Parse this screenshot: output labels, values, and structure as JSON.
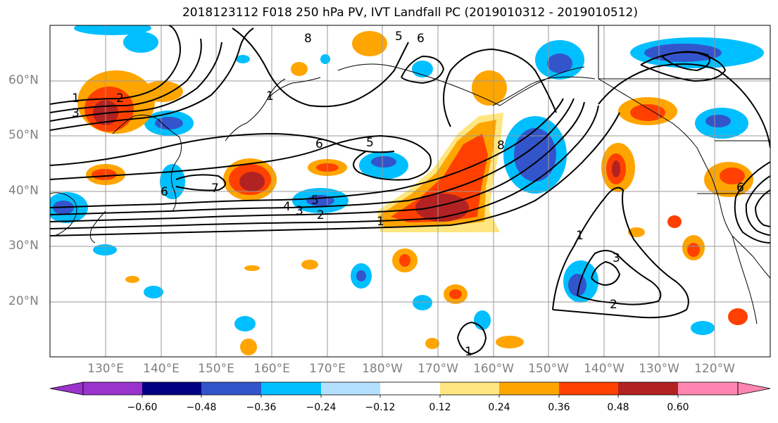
{
  "title": "2018123112 F018 250 hPa PV, IVT Landfall PC (2019010312 - 2019010512)",
  "lat_labels": [
    "60°N",
    "50°N",
    "40°N",
    "30°N",
    "20°N"
  ],
  "lon_labels": [
    "130°E",
    "140°E",
    "150°E",
    "160°E",
    "170°E",
    "180°W",
    "170°W",
    "160°W",
    "150°W",
    "140°W",
    "130°W",
    "120°W"
  ],
  "colorbar": {
    "ticks": [
      "−0.60",
      "−0.48",
      "−0.36",
      "−0.24",
      "−0.12",
      "0.12",
      "0.24",
      "0.36",
      "0.48",
      "0.60"
    ],
    "colors": [
      "#9933cc",
      "#000080",
      "#3355cc",
      "#00bfff",
      "#b3e0ff",
      "#ffffff",
      "#ffe680",
      "#ffa500",
      "#ff4000",
      "#b22222",
      "#ff85b0"
    ]
  },
  "contour_labels": [
    "1",
    "2",
    "3",
    "4",
    "5",
    "6",
    "7",
    "8"
  ],
  "shading_colors": {
    "neg_strong": "#3355cc",
    "neg_mid": "#00bfff",
    "neg_weak": "#b3e0ff",
    "pos_weak": "#ffe680",
    "pos_mid": "#ffa500",
    "pos_strong": "#ff4000",
    "pos_max": "#b22222"
  }
}
